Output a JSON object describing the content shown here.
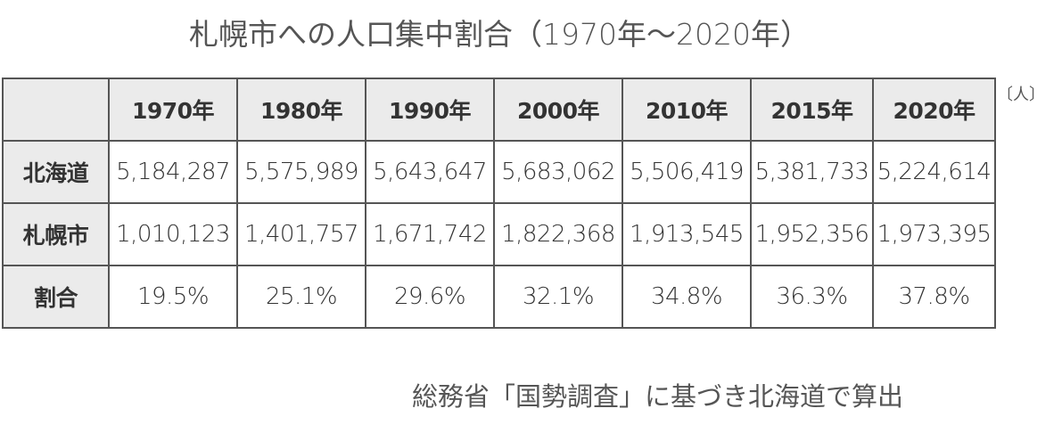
{
  "title": "札幌市への人口集中割合（1970年〜2020年）",
  "unit": "〔人〕",
  "table": {
    "header": [
      "",
      "1970年",
      "1980年",
      "1990年",
      "2000年",
      "2010年",
      "2015年",
      "2020年"
    ],
    "rows": [
      [
        "北海道",
        "5,184,287",
        "5,575,989",
        "5,643,647",
        "5,683,062",
        "5,506,419",
        "5,381,733",
        "5,224,614"
      ],
      [
        "札幌市",
        "1,010,123",
        "1,401,757",
        "1,671,742",
        "1,822,368",
        "1,913,545",
        "1,952,356",
        "1,973,395"
      ],
      [
        "割合",
        "19.5%",
        "25.1%",
        "29.6%",
        "32.1%",
        "34.8%",
        "36.3%",
        "37.8%"
      ]
    ]
  },
  "note": "総務省「国勢調査」に基づき北海道で算出"
}
